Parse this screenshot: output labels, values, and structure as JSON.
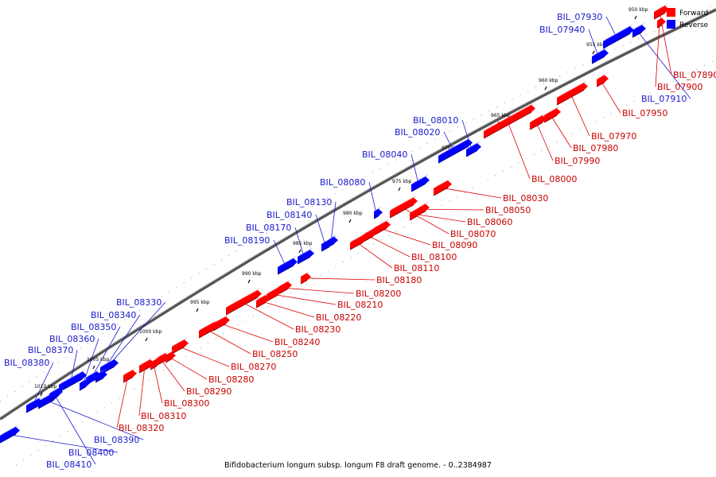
{
  "legend": {
    "forward_label": "Forward",
    "reverse_label": "Reverse",
    "forward_color": "#ff0000",
    "reverse_color": "#0000ff"
  },
  "caption": "Bifidobacterium longum subsp. longum F8 draft genome. - 0..2384987",
  "ticks": [
    "950 kbp",
    "955 kbp",
    "960 kbp",
    "965 kbp",
    "970 kbp",
    "975 kbp",
    "980 kbp",
    "985 kbp",
    "990 kbp",
    "995 kbp",
    "1000 kbp",
    "1005 kbp",
    "1010 kbp"
  ],
  "genes_reverse": [
    "BIL_07930",
    "BIL_07940",
    "BIL_08010",
    "BIL_08020",
    "BIL_08040",
    "BIL_08080",
    "BIL_08130",
    "BIL_08140",
    "BIL_08170",
    "BIL_08190",
    "BIL_08330",
    "BIL_08340",
    "BIL_08350",
    "BIL_08360",
    "BIL_08370",
    "BIL_08380",
    "BIL_07910",
    "BIL_08390",
    "BIL_08400",
    "BIL_08410"
  ],
  "genes_forward": [
    "BIL_07890",
    "BIL_07900",
    "BIL_07950",
    "BIL_07970",
    "BIL_07980",
    "BIL_07990",
    "BIL_08000",
    "BIL_08030",
    "BIL_08050",
    "BIL_08060",
    "BIL_08070",
    "BIL_08090",
    "BIL_08100",
    "BIL_08110",
    "BIL_08180",
    "BIL_08200",
    "BIL_08210",
    "BIL_08220",
    "BIL_08230",
    "BIL_08240",
    "BIL_08250",
    "BIL_08270",
    "BIL_08280",
    "BIL_08290",
    "BIL_08300",
    "BIL_08310",
    "BIL_08320"
  ]
}
